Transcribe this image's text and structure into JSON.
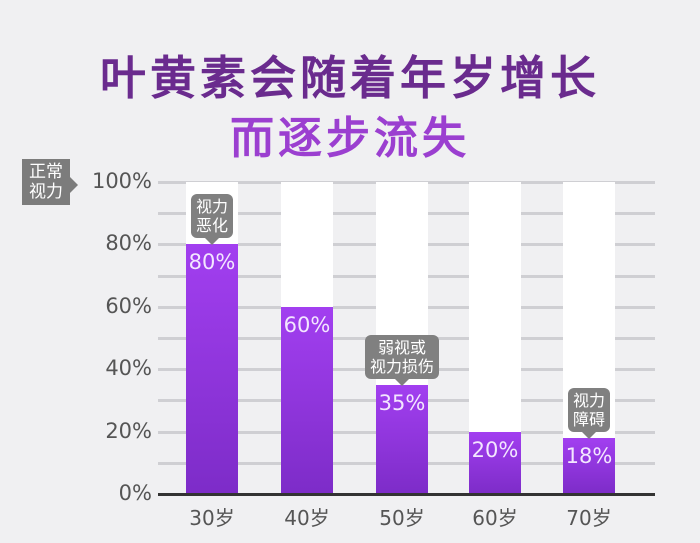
{
  "title": {
    "line1": "叶黄素会随着年岁增长",
    "line2": "而逐步流失"
  },
  "y_badge": {
    "line1": "正常",
    "line2": "视力"
  },
  "y_ticks": [
    "100%",
    "80%",
    "60%",
    "40%",
    "20%",
    "0%"
  ],
  "bars": [
    {
      "label": "30岁",
      "value": 80,
      "value_label": "80%",
      "callout": [
        "视力",
        "恶化"
      ]
    },
    {
      "label": "40岁",
      "value": 60,
      "value_label": "60%",
      "callout": []
    },
    {
      "label": "50岁",
      "value": 35,
      "value_label": "35%",
      "callout": [
        "弱视或",
        "视力损伤"
      ]
    },
    {
      "label": "60岁",
      "value": 20,
      "value_label": "20%",
      "callout": []
    },
    {
      "label": "70岁",
      "value": 18,
      "value_label": "18%",
      "callout": [
        "视力",
        "障碍"
      ]
    }
  ],
  "colors": {
    "bar_top": "#a23ff0",
    "bar_bottom": "#7d2cc8",
    "track": "#ffffff",
    "title1": "#6a2b8e",
    "title2": "#9b3fd0",
    "callout": "#808080"
  },
  "chart_data": {
    "type": "bar",
    "title": "叶黄素会随着年岁增长而逐步流失",
    "categories": [
      "30岁",
      "40岁",
      "50岁",
      "60岁",
      "70岁"
    ],
    "values": [
      80,
      60,
      35,
      20,
      18
    ],
    "annotations": [
      {
        "category": "30岁",
        "text": "视力恶化"
      },
      {
        "category": "50岁",
        "text": "弱视或视力损伤"
      },
      {
        "category": "70岁",
        "text": "视力障碍"
      },
      {
        "target": "100%",
        "text": "正常视力"
      }
    ],
    "xlabel": "",
    "ylabel": "",
    "ylim": [
      0,
      100
    ],
    "yticks": [
      "0%",
      "20%",
      "40%",
      "60%",
      "80%",
      "100%"
    ],
    "grid": true,
    "legend": "none"
  }
}
